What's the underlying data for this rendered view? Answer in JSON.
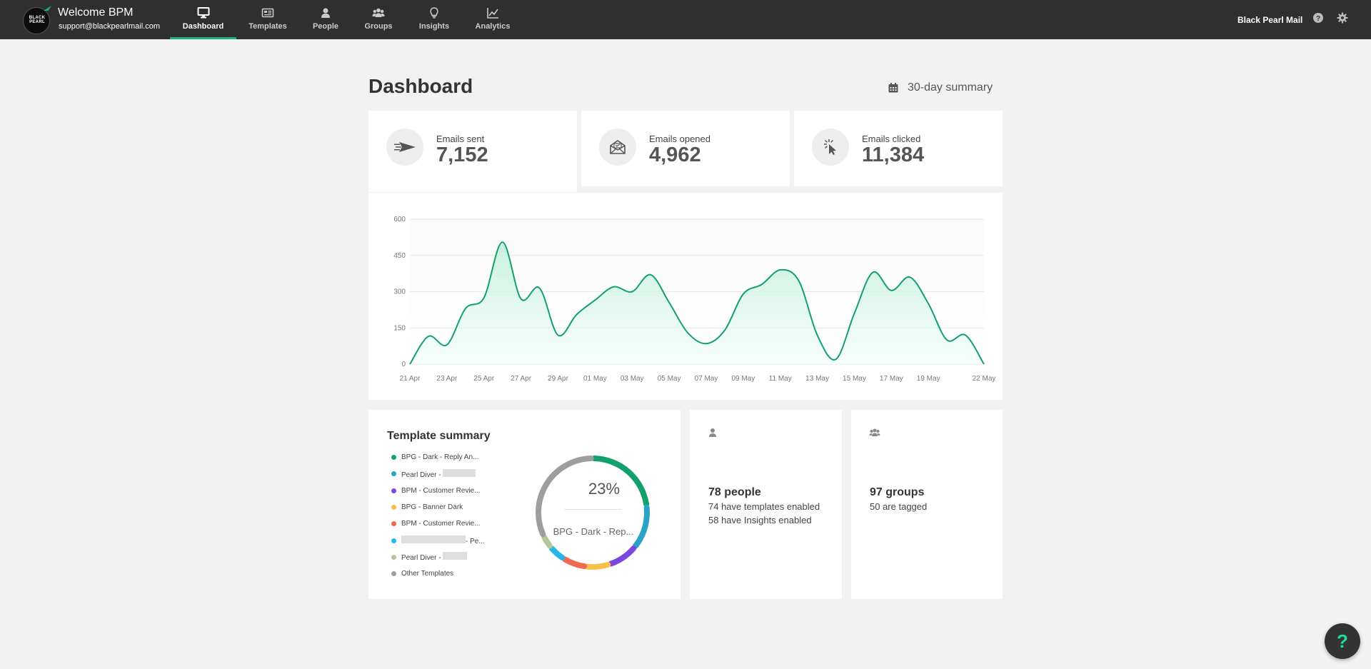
{
  "header": {
    "welcome": "Welcome BPM",
    "email": "support@blackpearlmail.com",
    "logo_text": "BLACK PEARL",
    "brand_name": "Black Pearl Mail",
    "nav": [
      {
        "label": "Dashboard",
        "icon": "monitor-icon",
        "active": true
      },
      {
        "label": "Templates",
        "icon": "newspaper-icon",
        "active": false
      },
      {
        "label": "People",
        "icon": "user-icon",
        "active": false
      },
      {
        "label": "Groups",
        "icon": "users-icon",
        "active": false
      },
      {
        "label": "Insights",
        "icon": "lightbulb-icon",
        "active": false
      },
      {
        "label": "Analytics",
        "icon": "line-chart-icon",
        "active": false
      }
    ]
  },
  "page": {
    "title": "Dashboard",
    "summary_label": "30-day summary"
  },
  "stats": [
    {
      "label": "Emails sent",
      "value": "7,152",
      "icon": "paper-plane-icon"
    },
    {
      "label": "Emails opened",
      "value": "4,962",
      "icon": "envelope-open-icon"
    },
    {
      "label": "Emails clicked",
      "value": "11,384",
      "icon": "cursor-click-icon"
    }
  ],
  "chart_data": {
    "type": "area",
    "x_tick_labels": [
      "21 Apr",
      "23 Apr",
      "25 Apr",
      "27 Apr",
      "29 Apr",
      "01 May",
      "03 May",
      "05 May",
      "07 May",
      "09 May",
      "11 May",
      "13 May",
      "15 May",
      "17 May",
      "19 May",
      "22 May"
    ],
    "y_ticks": [
      0,
      150,
      300,
      450,
      600
    ],
    "ylim": [
      0,
      600
    ],
    "grid": true,
    "line_color": "#13a06d",
    "fill_color": "#d9f7ec",
    "x": [
      "21 Apr",
      "22 Apr",
      "23 Apr",
      "24 Apr",
      "25 Apr",
      "26 Apr",
      "27 Apr",
      "28 Apr",
      "29 Apr",
      "30 Apr",
      "01 May",
      "02 May",
      "03 May",
      "04 May",
      "05 May",
      "06 May",
      "07 May",
      "08 May",
      "09 May",
      "10 May",
      "11 May",
      "12 May",
      "13 May",
      "14 May",
      "15 May",
      "16 May",
      "17 May",
      "18 May",
      "19 May",
      "20 May",
      "21 May",
      "22 May"
    ],
    "values": [
      0,
      115,
      80,
      230,
      275,
      505,
      270,
      315,
      120,
      205,
      265,
      320,
      300,
      370,
      255,
      130,
      85,
      140,
      290,
      330,
      390,
      345,
      120,
      20,
      210,
      380,
      305,
      360,
      250,
      100,
      120,
      0
    ]
  },
  "template_summary": {
    "title": "Template summary",
    "donut_percent": "23%",
    "donut_label": "BPG - Dark - Rep...",
    "items": [
      {
        "label": "BPG - Dark - Reply An...",
        "color": "#13a06d",
        "redact": 0,
        "share": 0.23
      },
      {
        "label": "Pearl Diver - ",
        "color": "#2aa3c7",
        "redact": 46,
        "share": 0.13
      },
      {
        "label": "BPM - Customer Revie...",
        "color": "#7c47e0",
        "redact": 0,
        "share": 0.09
      },
      {
        "label": "BPG - Banner Dark",
        "color": "#f7c04a",
        "redact": 0,
        "share": 0.07
      },
      {
        "label": "BPM - Customer Revie...",
        "color": "#f06a4f",
        "redact": 0,
        "share": 0.07
      },
      {
        "label": "- Pe...",
        "color": "#27b6e8",
        "redact": 90,
        "share": 0.05
      },
      {
        "label": "Pearl Diver - ",
        "color": "#b5c79a",
        "redact": 34,
        "share": 0.04
      },
      {
        "label": "Other Templates",
        "color": "#9e9e9e",
        "redact": 0,
        "share": 0.32
      }
    ]
  },
  "people_card": {
    "title": "78 people",
    "line1": "74 have templates enabled",
    "line2": "58 have Insights enabled"
  },
  "groups_card": {
    "title": "97 groups",
    "line1": "50 are tagged"
  },
  "help_fab": "?"
}
